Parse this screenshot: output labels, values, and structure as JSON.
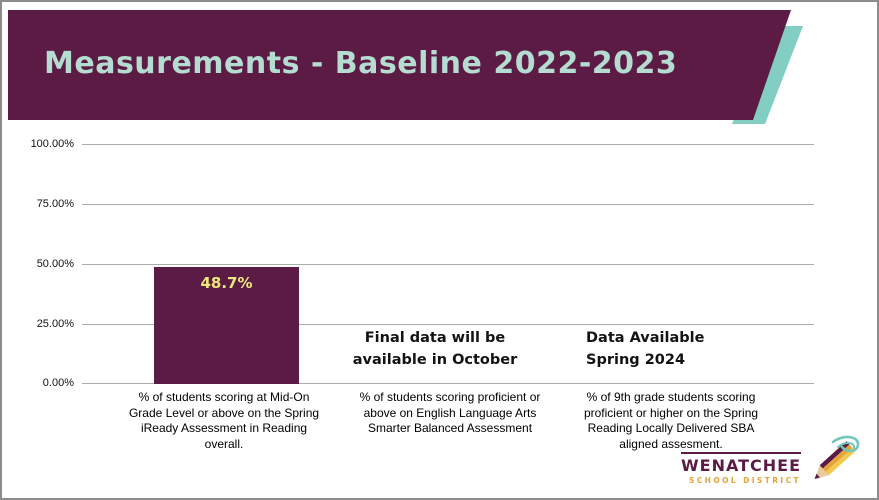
{
  "slide": {
    "title": "Measurements - Baseline 2022-2023"
  },
  "chart_data": {
    "type": "bar",
    "title": "Measurements - Baseline 2022-2023",
    "categories": [
      "% of students scoring at Mid-On Grade Level or above on the Spring iReady Assessment in Reading overall.",
      "% of students scoring proficient or above on English Language Arts Smarter Balanced Assessment",
      "% of 9th grade students scoring proficient or higher on the Spring Reading Locally Delivered SBA aligned assesment."
    ],
    "values": [
      48.7,
      null,
      null
    ],
    "bar_label": "48.7%",
    "y_ticks": [
      "100.00%",
      "75.00%",
      "50.00%",
      "25.00%",
      "0.00%"
    ],
    "ylim": [
      0,
      100
    ],
    "grid": true,
    "legend": false,
    "annotations": [
      "Final data will be available in October",
      "Data Available Spring 2024"
    ],
    "bar_color": "#5c1b44",
    "bar_label_color": "#ece87f"
  },
  "footer": {
    "district_name": "WENATCHEE",
    "district_subtitle": "SCHOOL DISTRICT"
  },
  "colors": {
    "banner": "#5c1b44",
    "accent_teal": "#82cec3",
    "title_text": "#b5dcd0",
    "brand_maroon": "#5c1b44",
    "brand_orange": "#e5a33c",
    "gridline": "#ababab"
  }
}
